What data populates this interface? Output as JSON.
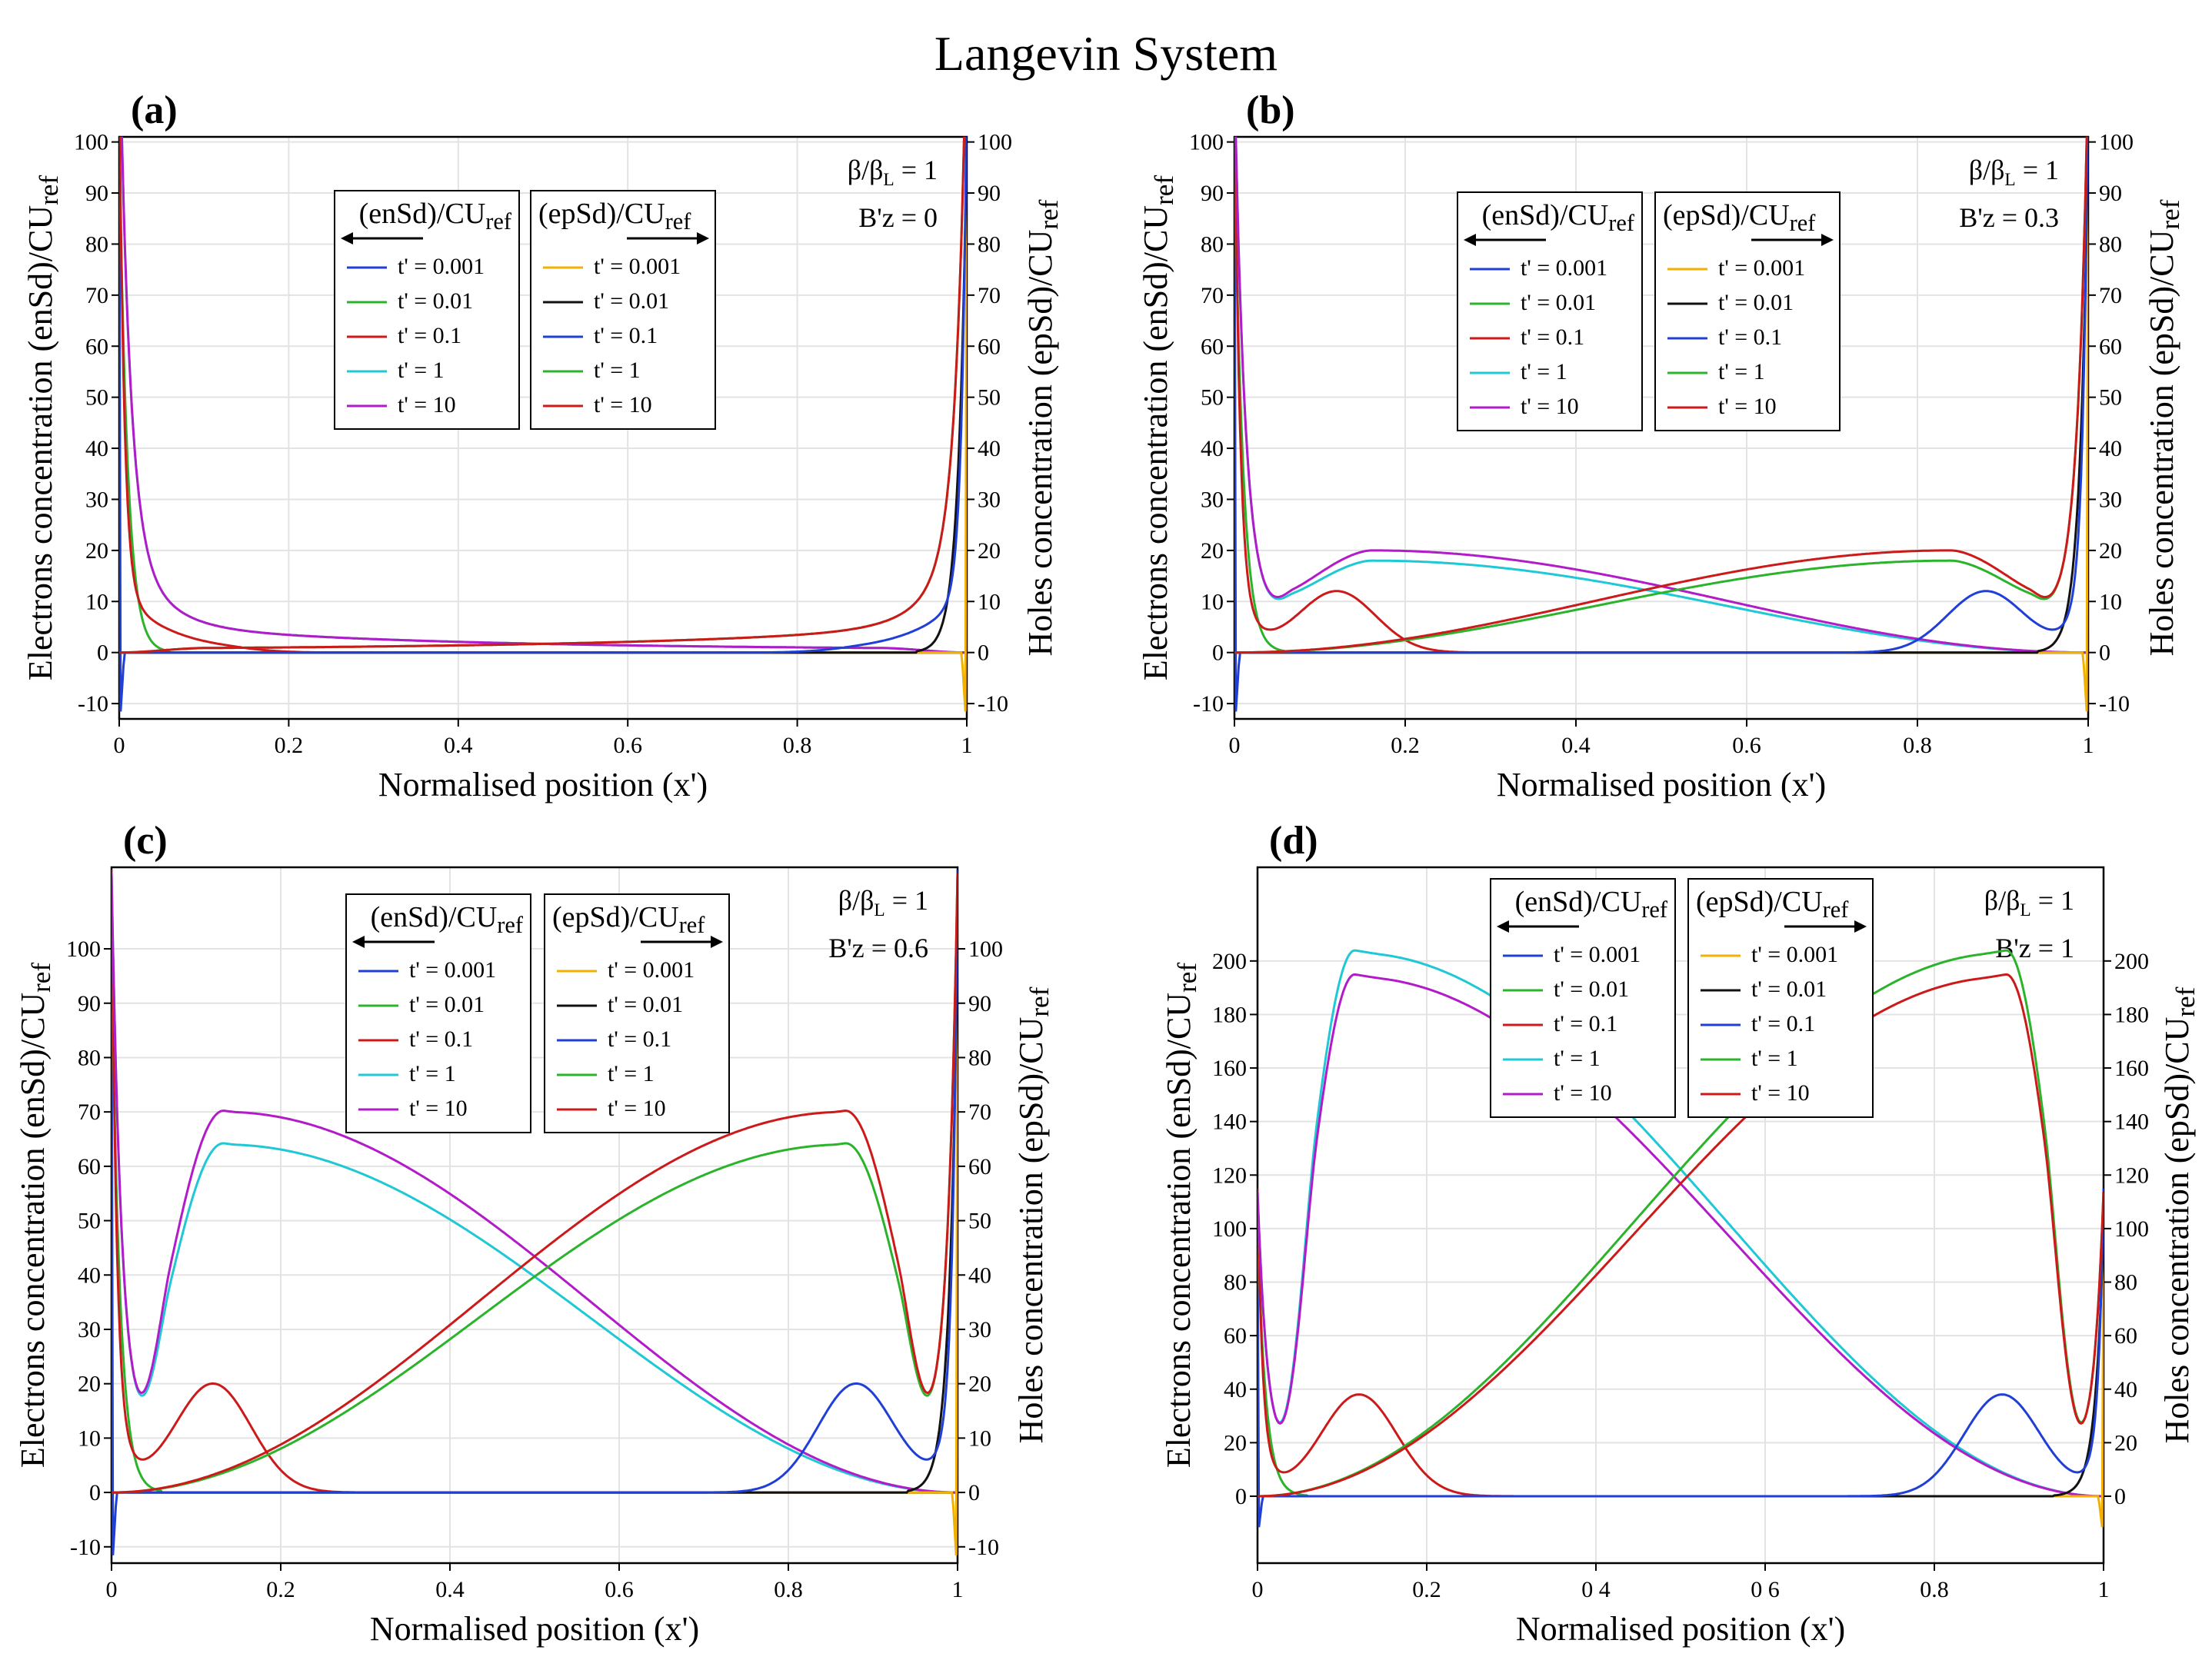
{
  "title": "Langevin System",
  "colors": {
    "blue": "#1f3fd6",
    "green": "#2bb32b",
    "red": "#cc1a1a",
    "cyan": "#1ec8d4",
    "magenta": "#b21bc8",
    "orange": "#f2b100",
    "black": "#111111",
    "grid": "#e3e3e3"
  },
  "chart_data": [
    {
      "type": "line",
      "panel": "(a)",
      "params": [
        "β/βL = 1",
        "B'z = 0"
      ],
      "param_parts": [
        {
          "main": "β/β",
          "sub": "L",
          "rest": " = 1"
        },
        {
          "main": "B'z = 0"
        }
      ],
      "xlabel": "Normalised position (x')",
      "ylabel_left": "Electrons concentration (enSd)/CUref",
      "ylabel_right": "Holes concentration (epSd)/CUref",
      "xlim": [
        0,
        1
      ],
      "ylim": [
        -13,
        101
      ],
      "xticks": [
        0,
        0.2,
        0.4,
        0.6,
        0.8,
        1
      ],
      "xtick_labels": [
        "0",
        "0.2",
        "0.4",
        "0.6",
        "0.8",
        "1"
      ],
      "yticks": [
        -10,
        0,
        10,
        20,
        30,
        40,
        50,
        60,
        70,
        80,
        90,
        100
      ],
      "B": 0,
      "Pn": 0,
      "Pp": 0,
      "bump": 0,
      "legend_left_title": "(enSd)/CUref",
      "legend_right_title": "(epSd)/CUref",
      "legend_left": [
        "t' = 0.001",
        "t' = 0.01",
        "t' = 0.1",
        "t' = 1",
        "t' = 10"
      ],
      "legend_right": [
        "t' = 0.001",
        "t' = 0.01",
        "t' = 0.1",
        "t' = 1",
        "t' = 10"
      ],
      "series": [
        {
          "name": "enSd t' = 0.001",
          "color": "blue",
          "x": [
            0,
            0.002,
            0.004,
            0.006,
            0.01,
            0.02
          ],
          "y": [
            100,
            40,
            -10,
            0,
            0,
            0
          ]
        },
        {
          "name": "enSd t' = 0.01",
          "color": "green",
          "x": [
            0,
            0.01,
            0.02,
            0.03,
            0.04,
            0.05
          ],
          "y": [
            100,
            60,
            30,
            12,
            3,
            0
          ]
        },
        {
          "name": "enSd t' = 0.1",
          "color": "red",
          "x": [
            0,
            0.02,
            0.05,
            0.1,
            0.15,
            0.2,
            0.25
          ],
          "y": [
            100,
            30,
            12,
            7,
            3,
            1,
            0
          ]
        },
        {
          "name": "enSd t' = 1",
          "color": "cyan",
          "x": [
            0,
            0.02,
            0.05,
            0.1,
            0.2,
            0.5,
            0.8,
            0.95
          ],
          "y": [
            100,
            28,
            13,
            7,
            4,
            2,
            1,
            0
          ]
        },
        {
          "name": "enSd t' = 10",
          "color": "magenta",
          "x": [
            0,
            0.02,
            0.05,
            0.1,
            0.2,
            0.5,
            0.8,
            0.95
          ],
          "y": [
            100,
            28,
            13,
            7,
            4,
            2,
            1,
            0
          ]
        },
        {
          "name": "epSd t' = 0.001",
          "color": "orange",
          "x": [
            0.98,
            0.99,
            0.994,
            0.996,
            0.998,
            1
          ],
          "y": [
            0,
            0,
            0,
            -10,
            40,
            100
          ]
        },
        {
          "name": "epSd t' = 0.01",
          "color": "black",
          "x": [
            0.95,
            0.96,
            0.97,
            0.98,
            0.99,
            1
          ],
          "y": [
            0,
            3,
            12,
            30,
            60,
            100
          ]
        },
        {
          "name": "epSd t' = 0.1",
          "color": "blue",
          "x": [
            0.75,
            0.8,
            0.85,
            0.9,
            0.95,
            0.98,
            1
          ],
          "y": [
            0,
            1,
            3,
            7,
            12,
            30,
            100
          ]
        },
        {
          "name": "epSd t' = 1",
          "color": "green",
          "x": [
            0.05,
            0.2,
            0.5,
            0.8,
            0.9,
            0.95,
            0.98,
            1
          ],
          "y": [
            0,
            1,
            2,
            4,
            7,
            13,
            28,
            100
          ]
        },
        {
          "name": "epSd t' = 10",
          "color": "red",
          "x": [
            0.05,
            0.2,
            0.5,
            0.8,
            0.9,
            0.95,
            0.98,
            1
          ],
          "y": [
            0,
            1,
            2,
            4,
            7,
            13,
            28,
            100
          ]
        }
      ]
    },
    {
      "type": "line",
      "panel": "(b)",
      "params": [
        "β/βL = 1",
        "B'z = 0.3"
      ],
      "param_parts": [
        {
          "main": "β/β",
          "sub": "L",
          "rest": " = 1"
        },
        {
          "main": "B'z = 0.3"
        }
      ],
      "xlabel": "Normalised position (x')",
      "ylabel_left": "Electrons concentration (enSd)/CUref",
      "ylabel_right": "Holes concentration (epSd)/CUref",
      "xlim": [
        0,
        1
      ],
      "ylim": [
        -13,
        101
      ],
      "xticks": [
        0,
        0.2,
        0.4,
        0.6,
        0.8,
        1
      ],
      "xtick_labels": [
        "0",
        "0.2",
        "0.4",
        "0.6",
        "0.8",
        "1"
      ],
      "yticks": [
        -10,
        0,
        10,
        20,
        30,
        40,
        50,
        60,
        70,
        80,
        90,
        100
      ],
      "B": 0.3,
      "Pn": 18,
      "Pp": 20,
      "bump": 12,
      "legend_left_title": "(enSd)/CUref",
      "legend_right_title": "(epSd)/CUref",
      "legend_left": [
        "t' = 0.001",
        "t' = 0.01",
        "t' = 0.1",
        "t' = 1",
        "t' = 10"
      ],
      "legend_right": [
        "t' = 0.001",
        "t' = 0.01",
        "t' = 0.1",
        "t' = 1",
        "t' = 10"
      ],
      "series": [
        {
          "name": "enSd t' = 0.001",
          "color": "blue",
          "x": [
            0,
            0.002,
            0.004,
            0.006,
            0.01
          ],
          "y": [
            100,
            40,
            -10,
            0,
            0
          ]
        },
        {
          "name": "enSd t' = 0.01",
          "color": "green",
          "x": [
            0,
            0.01,
            0.03,
            0.05
          ],
          "y": [
            100,
            40,
            8,
            0
          ]
        },
        {
          "name": "enSd t' = 0.1",
          "color": "red",
          "x": [
            0,
            0.03,
            0.1,
            0.15,
            0.2,
            0.25
          ],
          "y": [
            100,
            17,
            14,
            8,
            1,
            0
          ]
        },
        {
          "name": "enSd t' = 1",
          "color": "cyan",
          "x": [
            0.05,
            0.1,
            0.23,
            0.5,
            0.8,
            0.95
          ],
          "y": [
            2,
            12,
            18,
            14,
            8,
            1
          ]
        },
        {
          "name": "enSd t' = 10",
          "color": "magenta",
          "x": [
            0.05,
            0.1,
            0.23,
            0.5,
            0.8,
            0.95
          ],
          "y": [
            2,
            12,
            20,
            15,
            8,
            1
          ]
        },
        {
          "name": "epSd t' = 0.001",
          "color": "orange",
          "x": [
            0.99,
            0.994,
            0.996,
            0.998,
            1
          ],
          "y": [
            0,
            0,
            -10,
            40,
            100
          ]
        },
        {
          "name": "epSd t' = 0.01",
          "color": "black",
          "x": [
            0.95,
            0.97,
            0.99,
            1
          ],
          "y": [
            0,
            8,
            40,
            100
          ]
        },
        {
          "name": "epSd t' = 0.1",
          "color": "blue",
          "x": [
            0.75,
            0.85,
            0.9,
            0.97,
            1
          ],
          "y": [
            0,
            8,
            14,
            17,
            100
          ]
        },
        {
          "name": "epSd t' = 1",
          "color": "green",
          "x": [
            0.05,
            0.2,
            0.5,
            0.77,
            0.9,
            0.95
          ],
          "y": [
            1,
            8,
            14,
            18,
            12,
            2
          ]
        },
        {
          "name": "epSd t' = 10",
          "color": "red",
          "x": [
            0.05,
            0.2,
            0.5,
            0.77,
            0.9,
            0.95
          ],
          "y": [
            1,
            8,
            15,
            20,
            12,
            2
          ]
        }
      ]
    },
    {
      "type": "line",
      "panel": "(c)",
      "params": [
        "β/βL = 1",
        "B'z = 0.6"
      ],
      "param_parts": [
        {
          "main": "β/β",
          "sub": "L",
          "rest": " = 1"
        },
        {
          "main": "B'z = 0.6"
        }
      ],
      "xlabel": "Normalised position (x')",
      "ylabel_left": "Electrons concentration (enSd)/CUref",
      "ylabel_right": "Holes concentration (epSd)/CUref",
      "xlim": [
        0,
        1
      ],
      "ylim": [
        -13,
        115
      ],
      "xticks": [
        0,
        0.2,
        0.4,
        0.6,
        0.8,
        1
      ],
      "xtick_labels": [
        "0",
        "0.2",
        "0.4",
        "0.6",
        "0.8",
        "1"
      ],
      "yticks": [
        -10,
        0,
        10,
        20,
        30,
        40,
        50,
        60,
        70,
        80,
        90,
        100
      ],
      "B": 0.6,
      "Pn": 64,
      "Pp": 70,
      "bump": 20,
      "legend_left_title": "(enSd)/CUref",
      "legend_right_title": "(epSd)/CUref",
      "legend_left": [
        "t' = 0.001",
        "t' = 0.01",
        "t' = 0.1",
        "t' = 1",
        "t' = 10"
      ],
      "legend_right": [
        "t' = 0.001",
        "t' = 0.01",
        "t' = 0.1",
        "t' = 1",
        "t' = 10"
      ],
      "series": [
        {
          "name": "enSd t' = 0.001",
          "color": "blue",
          "x": [
            0,
            0.002,
            0.004,
            0.006,
            0.01
          ],
          "y": [
            100,
            40,
            -12,
            0,
            0
          ]
        },
        {
          "name": "enSd t' = 0.01",
          "color": "green",
          "x": [
            0,
            0.01,
            0.03,
            0.05
          ],
          "y": [
            100,
            40,
            8,
            0
          ]
        },
        {
          "name": "enSd t' = 0.1",
          "color": "red",
          "x": [
            0,
            0.04,
            0.12,
            0.2,
            0.25
          ],
          "y": [
            100,
            16,
            20,
            2,
            0
          ]
        },
        {
          "name": "enSd t' = 1",
          "color": "cyan",
          "x": [
            0.03,
            0.08,
            0.14,
            0.5,
            0.9,
            0.97
          ],
          "y": [
            30,
            8,
            64,
            38,
            8,
            1
          ]
        },
        {
          "name": "enSd t' = 10",
          "color": "magenta",
          "x": [
            0.03,
            0.08,
            0.14,
            0.5,
            0.9,
            0.97
          ],
          "y": [
            30,
            8,
            70,
            37,
            8,
            1
          ]
        },
        {
          "name": "epSd t' = 0.001",
          "color": "orange",
          "x": [
            0.99,
            0.994,
            0.996,
            0.998,
            1
          ],
          "y": [
            0,
            0,
            -12,
            40,
            100
          ]
        },
        {
          "name": "epSd t' = 0.01",
          "color": "black",
          "x": [
            0.95,
            0.97,
            0.99,
            1
          ],
          "y": [
            0,
            8,
            40,
            100
          ]
        },
        {
          "name": "epSd t' = 0.1",
          "color": "blue",
          "x": [
            0.75,
            0.88,
            0.96,
            1
          ],
          "y": [
            0,
            20,
            16,
            100
          ]
        },
        {
          "name": "epSd t' = 1",
          "color": "green",
          "x": [
            0.03,
            0.1,
            0.5,
            0.86,
            0.92,
            0.97
          ],
          "y": [
            1,
            8,
            38,
            64,
            8,
            30
          ]
        },
        {
          "name": "epSd t' = 10",
          "color": "red",
          "x": [
            0.03,
            0.1,
            0.5,
            0.86,
            0.92,
            0.97
          ],
          "y": [
            1,
            8,
            37,
            70,
            8,
            30
          ]
        }
      ]
    },
    {
      "type": "line",
      "panel": "(d)",
      "params": [
        "β/βL = 1",
        "B'z = 1"
      ],
      "param_parts": [
        {
          "main": "β/β",
          "sub": "L",
          "rest": " = 1"
        },
        {
          "main": "B'z = 1"
        }
      ],
      "xlabel": "Normalised position (x')",
      "ylabel_left": "Electrons concentration (enSd)/CUref",
      "ylabel_right": "Holes concentration (epSd)/CUref",
      "xlim": [
        0,
        1
      ],
      "ylim": [
        -25,
        235
      ],
      "xticks": [
        0,
        0.2,
        0.4,
        0.6,
        0.8,
        1
      ],
      "xtick_labels": [
        "0",
        "0.2",
        "0 4",
        "0 6",
        "0.8",
        "1"
      ],
      "yticks": [
        0,
        20,
        40,
        60,
        80,
        100,
        120,
        140,
        160,
        180,
        200
      ],
      "B": 1,
      "Pn": 203,
      "Pp": 194,
      "bump": 38,
      "legend_left_title": "(enSd)/CUref",
      "legend_right_title": "(epSd)/CUref",
      "legend_left": [
        "t' = 0.001",
        "t' = 0.01",
        "t' = 0.1",
        "t' = 1",
        "t' = 10"
      ],
      "legend_right": [
        "t' = 0.001",
        "t' = 0.01",
        "t' = 0.1",
        "t' = 1",
        "t' = 10"
      ],
      "series": [
        {
          "name": "enSd t' = 0.001",
          "color": "blue",
          "x": [
            0,
            0.002,
            0.004,
            0.006,
            0.01
          ],
          "y": [
            100,
            40,
            -12,
            0,
            0
          ]
        },
        {
          "name": "enSd t' = 0.01",
          "color": "green",
          "x": [
            0,
            0.01,
            0.03,
            0.05
          ],
          "y": [
            100,
            40,
            8,
            0
          ]
        },
        {
          "name": "enSd t' = 0.1",
          "color": "red",
          "x": [
            0,
            0.03,
            0.14,
            0.22,
            0.27
          ],
          "y": [
            100,
            14,
            38,
            2,
            0
          ]
        },
        {
          "name": "enSd t' = 1",
          "color": "cyan",
          "x": [
            0.02,
            0.05,
            0.08,
            0.5,
            0.92,
            0.97
          ],
          "y": [
            40,
            4,
            203,
            62,
            4,
            1
          ]
        },
        {
          "name": "enSd t' = 10",
          "color": "magenta",
          "x": [
            0.02,
            0.05,
            0.08,
            0.5,
            0.92,
            0.97
          ],
          "y": [
            40,
            4,
            194,
            60,
            4,
            1
          ]
        },
        {
          "name": "epSd t' = 0.001",
          "color": "orange",
          "x": [
            0.99,
            0.994,
            0.996,
            0.998,
            1
          ],
          "y": [
            0,
            0,
            -12,
            40,
            100
          ]
        },
        {
          "name": "epSd t' = 0.01",
          "color": "black",
          "x": [
            0.95,
            0.97,
            0.99,
            1
          ],
          "y": [
            0,
            8,
            40,
            100
          ]
        },
        {
          "name": "epSd t' = 0.1",
          "color": "blue",
          "x": [
            0.73,
            0.86,
            0.97,
            1
          ],
          "y": [
            0,
            38,
            14,
            100
          ]
        },
        {
          "name": "epSd t' = 1",
          "color": "green",
          "x": [
            0.03,
            0.08,
            0.5,
            0.92,
            0.95,
            0.98
          ],
          "y": [
            1,
            4,
            62,
            203,
            4,
            40
          ]
        },
        {
          "name": "epSd t' = 10",
          "color": "red",
          "x": [
            0.03,
            0.08,
            0.5,
            0.92,
            0.95,
            0.98
          ],
          "y": [
            1,
            4,
            60,
            194,
            4,
            40
          ]
        }
      ]
    }
  ]
}
